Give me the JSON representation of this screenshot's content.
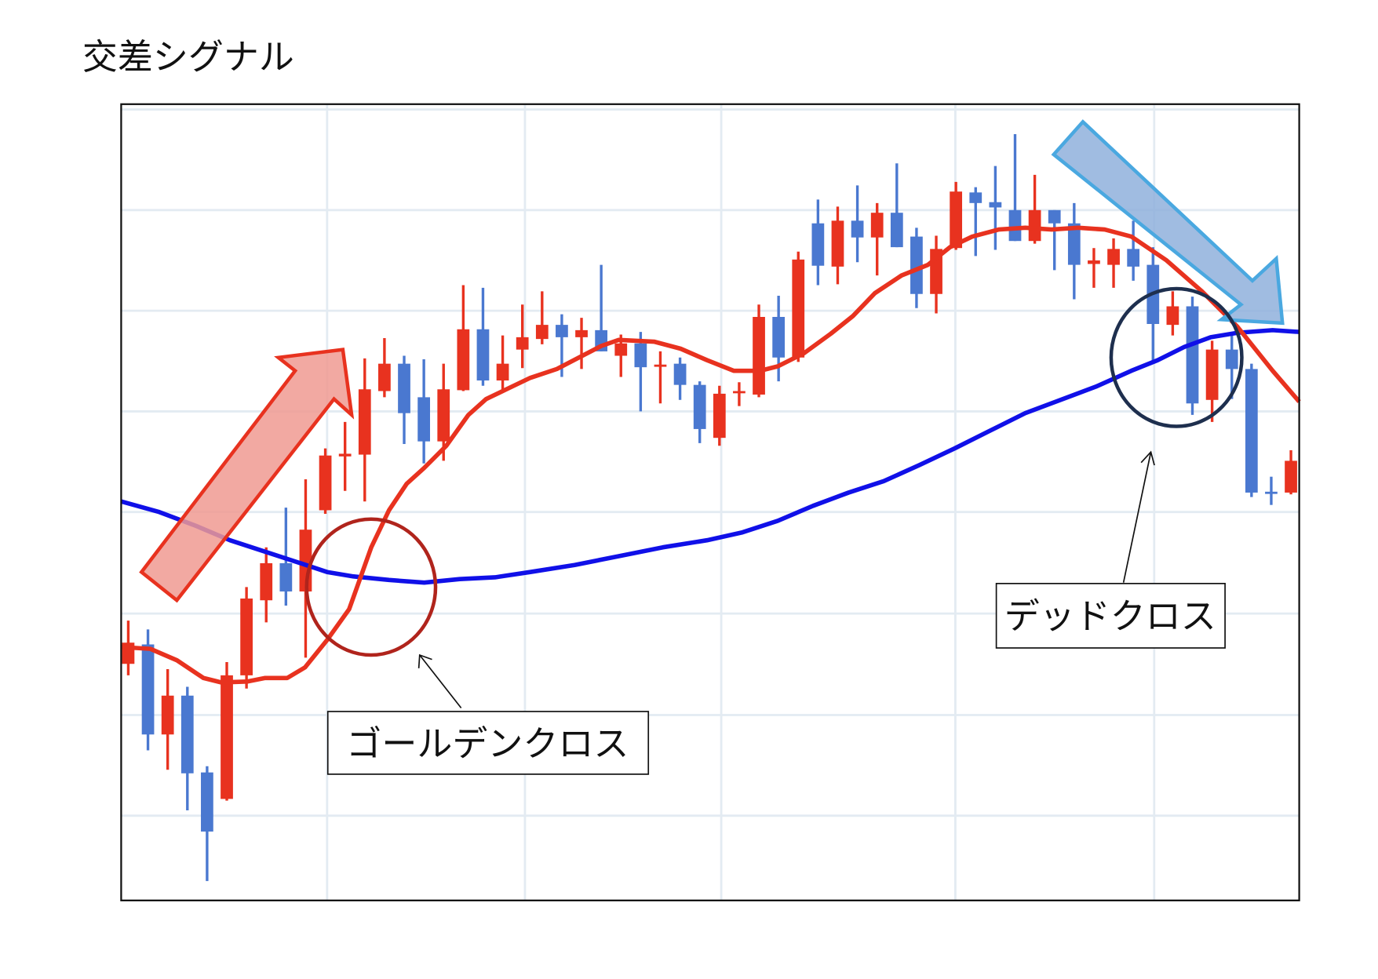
{
  "chart_data": {
    "type": "candlestick",
    "title": "交差シグナル",
    "xlabel": "",
    "ylabel": "",
    "xlim": [
      0.64,
      60.42
    ],
    "ylim": [
      0,
      90.2
    ],
    "grid": true,
    "gridlines_x": [
      11.09,
      21.13,
      31.09,
      42.97,
      53.06
    ],
    "gridlines_y": [
      9.6,
      21.0,
      32.5,
      44.0,
      55.4,
      66.8,
      78.2,
      89.6
    ],
    "colors": {
      "up": "#e8321f",
      "down": "#4a78d0",
      "short_ma": "#e8321f",
      "long_ma": "#1010e8",
      "grid": "#e3ebf2"
    },
    "ohlc": [
      [
        26.8,
        31.7,
        25.5,
        29.2
      ],
      [
        29.0,
        30.7,
        17.0,
        18.8
      ],
      [
        18.8,
        26.2,
        14.8,
        23.2
      ],
      [
        23.2,
        24.2,
        10.2,
        14.4
      ],
      [
        14.5,
        15.2,
        2.2,
        7.8
      ],
      [
        11.5,
        27.0,
        11.3,
        25.5
      ],
      [
        25.5,
        35.5,
        24.0,
        34.2
      ],
      [
        34.0,
        40.0,
        31.5,
        38.2
      ],
      [
        38.2,
        44.5,
        33.4,
        35.0
      ],
      [
        35.0,
        47.7,
        27.5,
        42.0
      ],
      [
        44.2,
        51.2,
        43.8,
        50.4
      ],
      [
        50.3,
        54.2,
        46.4,
        50.6
      ],
      [
        50.5,
        61.4,
        45.2,
        57.9
      ],
      [
        57.7,
        63.7,
        57.0,
        60.8
      ],
      [
        60.8,
        61.7,
        51.7,
        55.2
      ],
      [
        57.0,
        61.3,
        49.5,
        52.0
      ],
      [
        52.0,
        60.8,
        49.8,
        57.9
      ],
      [
        57.8,
        69.7,
        57.7,
        64.7
      ],
      [
        64.7,
        69.4,
        58.3,
        58.9
      ],
      [
        58.9,
        64.0,
        57.8,
        60.8
      ],
      [
        62.4,
        67.5,
        60.3,
        63.8
      ],
      [
        63.6,
        69.0,
        63.0,
        65.2
      ],
      [
        65.2,
        66.4,
        59.3,
        63.8
      ],
      [
        63.8,
        66.0,
        60.2,
        64.6
      ],
      [
        64.6,
        72.0,
        62.2,
        62.2
      ],
      [
        61.7,
        64.1,
        59.3,
        63.1
      ],
      [
        63.1,
        64.4,
        55.4,
        60.4
      ],
      [
        60.5,
        62.2,
        56.3,
        60.7
      ],
      [
        60.8,
        61.5,
        56.7,
        58.4
      ],
      [
        58.4,
        58.8,
        51.8,
        53.4
      ],
      [
        52.4,
        58.3,
        51.5,
        57.4
      ],
      [
        57.5,
        58.7,
        56.0,
        57.7
      ],
      [
        57.3,
        67.5,
        57.0,
        66.1
      ],
      [
        66.1,
        68.5,
        58.8,
        61.5
      ],
      [
        61.5,
        73.5,
        61.0,
        72.6
      ],
      [
        76.7,
        79.4,
        69.7,
        71.9
      ],
      [
        71.8,
        78.6,
        69.8,
        77.0
      ],
      [
        77.0,
        81.0,
        72.3,
        75.1
      ],
      [
        75.1,
        79.0,
        70.8,
        77.9
      ],
      [
        77.9,
        83.5,
        74.0,
        74.0
      ],
      [
        75.2,
        76.2,
        67.1,
        68.7
      ],
      [
        68.7,
        75.3,
        66.5,
        73.8
      ],
      [
        73.9,
        81.4,
        73.7,
        80.3
      ],
      [
        80.2,
        80.8,
        73.0,
        79.0
      ],
      [
        79.1,
        83.2,
        73.7,
        78.5
      ],
      [
        78.2,
        86.8,
        74.7,
        74.7
      ],
      [
        74.7,
        82.2,
        74.4,
        78.2
      ],
      [
        78.2,
        78.2,
        71.4,
        76.7
      ],
      [
        76.7,
        79.0,
        68.1,
        72.0
      ],
      [
        72.1,
        73.9,
        69.4,
        72.5
      ],
      [
        72.0,
        75.0,
        69.4,
        73.8
      ],
      [
        73.8,
        77.0,
        70.2,
        71.8
      ],
      [
        72.0,
        74.0,
        61.0,
        65.3
      ],
      [
        65.2,
        69.0,
        64.0,
        67.3
      ],
      [
        67.3,
        68.4,
        55.0,
        56.3
      ],
      [
        56.7,
        63.4,
        54.2,
        62.4
      ],
      [
        62.4,
        64.0,
        56.8,
        60.2
      ],
      [
        60.2,
        60.8,
        45.7,
        46.2
      ],
      [
        46.3,
        48.0,
        44.8,
        46.2
      ],
      [
        46.2,
        51.0,
        46.0,
        49.8
      ]
    ],
    "short_ma": [
      [
        0.64,
        28.7
      ],
      [
        2.12,
        28.5
      ],
      [
        3.47,
        27.2
      ],
      [
        4.81,
        25.2
      ],
      [
        5.71,
        24.7
      ],
      [
        7.05,
        24.8
      ],
      [
        7.95,
        25.2
      ],
      [
        9.07,
        25.2
      ],
      [
        9.97,
        26.4
      ],
      [
        11.09,
        29.5
      ],
      [
        12.21,
        33.0
      ],
      [
        13.33,
        40.0
      ],
      [
        14.23,
        44.2
      ],
      [
        15.13,
        47.2
      ],
      [
        16.02,
        49.0
      ],
      [
        17.14,
        51.5
      ],
      [
        18.26,
        55.0
      ],
      [
        19.16,
        56.8
      ],
      [
        20.28,
        58.0
      ],
      [
        21.4,
        59.2
      ],
      [
        22.75,
        60.2
      ],
      [
        23.87,
        61.5
      ],
      [
        24.99,
        62.8
      ],
      [
        25.89,
        63.5
      ],
      [
        27.68,
        63.3
      ],
      [
        29.03,
        62.5
      ],
      [
        30.37,
        61.2
      ],
      [
        31.72,
        60.0
      ],
      [
        33.06,
        60.0
      ],
      [
        33.96,
        60.5
      ],
      [
        35.3,
        62.0
      ],
      [
        36.65,
        64.2
      ],
      [
        37.77,
        66.2
      ],
      [
        38.89,
        68.8
      ],
      [
        40.24,
        70.8
      ],
      [
        41.58,
        72.0
      ],
      [
        42.7,
        74.0
      ],
      [
        43.83,
        75.2
      ],
      [
        45.17,
        76.0
      ],
      [
        46.52,
        76.2
      ],
      [
        47.86,
        76.0
      ],
      [
        49.21,
        76.2
      ],
      [
        50.55,
        76.0
      ],
      [
        51.9,
        75.2
      ],
      [
        53.69,
        72.5
      ],
      [
        55.48,
        69.0
      ],
      [
        57.28,
        65.0
      ],
      [
        59.07,
        60.0
      ],
      [
        60.42,
        56.5
      ]
    ],
    "long_ma": [
      [
        0.64,
        45.2
      ],
      [
        2.57,
        44.0
      ],
      [
        4.36,
        42.5
      ],
      [
        6.16,
        40.8
      ],
      [
        7.95,
        39.5
      ],
      [
        9.74,
        38.2
      ],
      [
        11.09,
        37.2
      ],
      [
        12.43,
        36.7
      ],
      [
        14.23,
        36.3
      ],
      [
        16.02,
        36.0
      ],
      [
        17.82,
        36.4
      ],
      [
        19.61,
        36.6
      ],
      [
        21.4,
        37.2
      ],
      [
        23.65,
        38.0
      ],
      [
        25.89,
        39.0
      ],
      [
        28.13,
        40.0
      ],
      [
        30.37,
        40.8
      ],
      [
        32.17,
        41.7
      ],
      [
        33.96,
        43.0
      ],
      [
        35.75,
        44.7
      ],
      [
        37.55,
        46.2
      ],
      [
        39.34,
        47.5
      ],
      [
        41.13,
        49.3
      ],
      [
        42.93,
        51.2
      ],
      [
        44.72,
        53.2
      ],
      [
        46.52,
        55.2
      ],
      [
        48.31,
        56.7
      ],
      [
        50.1,
        58.2
      ],
      [
        51.9,
        60.0
      ],
      [
        53.24,
        61.2
      ],
      [
        54.59,
        62.7
      ],
      [
        55.93,
        63.8
      ],
      [
        57.28,
        64.3
      ],
      [
        59.07,
        64.6
      ],
      [
        60.42,
        64.4
      ]
    ],
    "annotations": {
      "golden_cross": {
        "label": "ゴールデンクロス",
        "circle_color": "#b0241c"
      },
      "dead_cross": {
        "label": "デッドクロス",
        "circle_color": "#1e2f4e"
      },
      "up_arrow": {
        "fill": "#f09a92",
        "stroke": "#e8321f",
        "icon": "up-right-arrow"
      },
      "down_arrow": {
        "fill": "#8fb0dc",
        "stroke": "#4aa8e0",
        "icon": "down-right-arrow"
      }
    }
  }
}
